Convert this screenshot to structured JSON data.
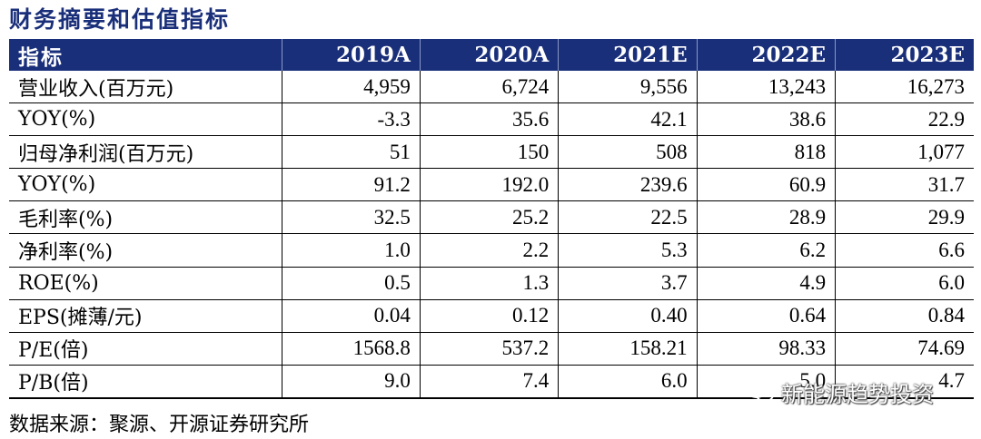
{
  "title": "财务摘要和估值指标",
  "table": {
    "header": [
      "指标",
      "2019A",
      "2020A",
      "2021E",
      "2022E",
      "2023E"
    ],
    "rows": [
      [
        "营业收入(百万元)",
        "4,959",
        "6,724",
        "9,556",
        "13,243",
        "16,273"
      ],
      [
        "YOY(%)",
        "-3.3",
        "35.6",
        "42.1",
        "38.6",
        "22.9"
      ],
      [
        "归母净利润(百万元)",
        "51",
        "150",
        "508",
        "818",
        "1,077"
      ],
      [
        "YOY(%)",
        "91.2",
        "192.0",
        "239.6",
        "60.9",
        "31.7"
      ],
      [
        "毛利率(%)",
        "32.5",
        "25.2",
        "22.5",
        "28.9",
        "29.9"
      ],
      [
        "净利率(%)",
        "1.0",
        "2.2",
        "5.3",
        "6.2",
        "6.6"
      ],
      [
        "ROE(%)",
        "0.5",
        "1.3",
        "3.7",
        "4.9",
        "6.0"
      ],
      [
        "EPS(摊薄/元)",
        "0.04",
        "0.12",
        "0.40",
        "0.64",
        "0.84"
      ],
      [
        "P/E(倍)",
        "1568.8",
        "537.2",
        "158.21",
        "98.33",
        "74.69"
      ],
      [
        "P/B(倍)",
        "9.0",
        "7.4",
        "6.0",
        "5.0",
        "4.7"
      ]
    ]
  },
  "source": "数据来源：聚源、开源证券研究所",
  "watermark": {
    "text": "新能源趋势投资",
    "icon": "wechat-icon"
  },
  "colors": {
    "header_bg": "#1a2f7a",
    "title": "#1a2f7a"
  }
}
